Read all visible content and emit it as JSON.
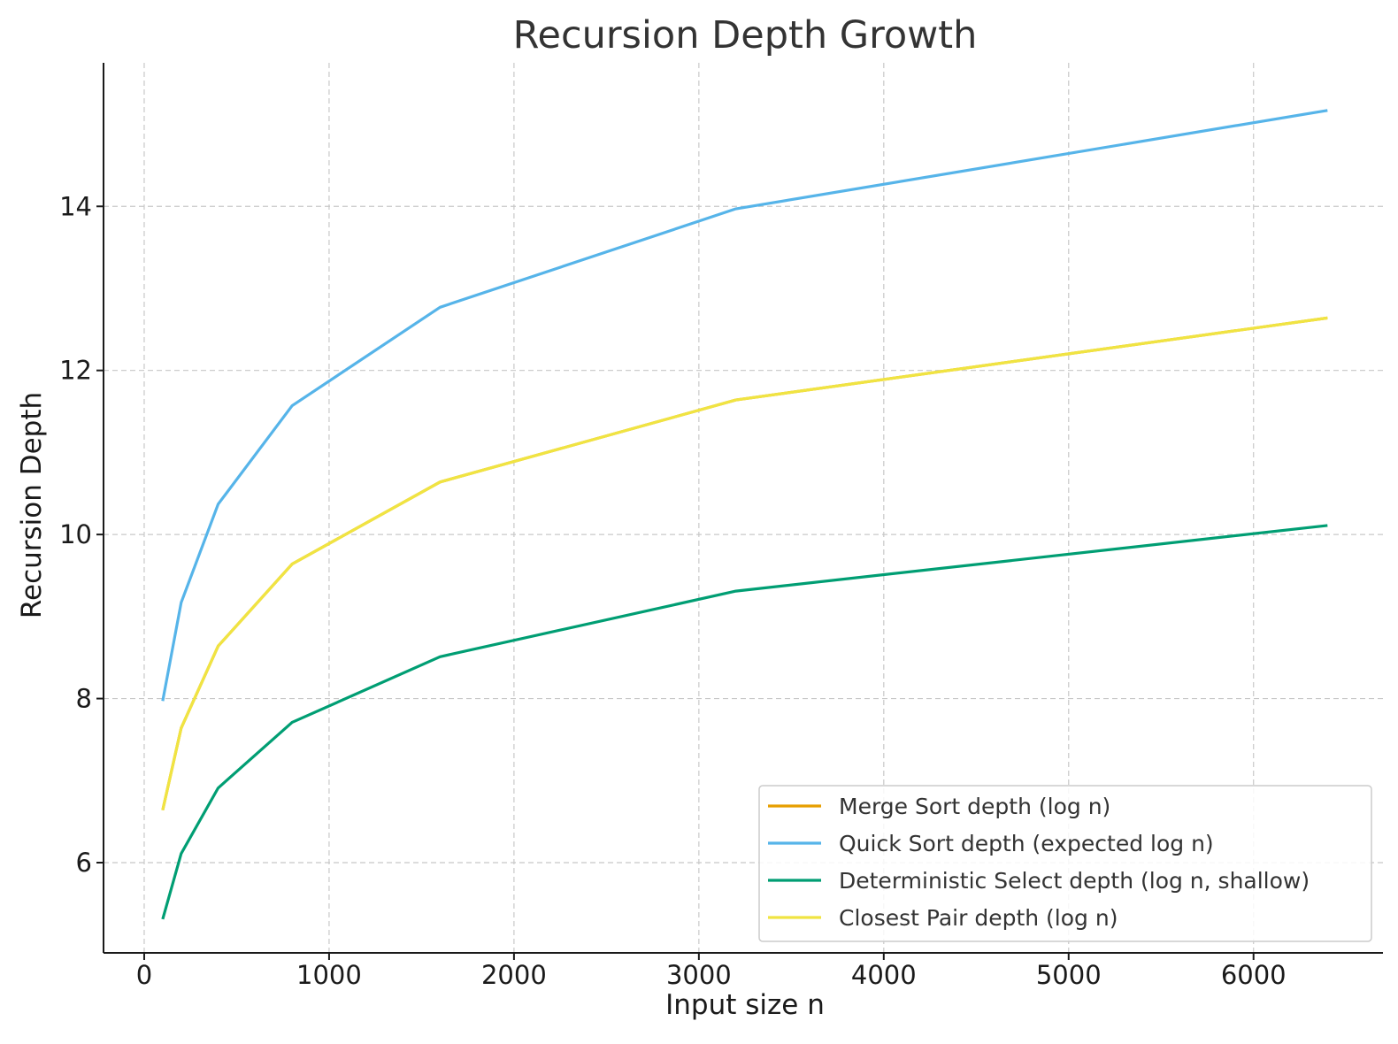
{
  "chart_data": {
    "type": "line",
    "title": "Recursion Depth Growth",
    "xlabel": "Input size n",
    "ylabel": "Recursion Depth",
    "xlim": [
      -220,
      6700
    ],
    "ylim": [
      4.9,
      15.75
    ],
    "xticks": [
      0,
      1000,
      2000,
      3000,
      4000,
      5000,
      6000
    ],
    "yticks": [
      6,
      8,
      10,
      12,
      14
    ],
    "grid": true,
    "legend_position": "lower-right",
    "x": [
      100,
      200,
      400,
      800,
      1600,
      3200,
      6400
    ],
    "series": [
      {
        "name": "Merge Sort depth (log n)",
        "color": "#E69F00",
        "values": [
          6.64,
          7.64,
          8.64,
          9.64,
          10.64,
          11.64,
          12.64
        ]
      },
      {
        "name": "Quick Sort depth (expected log n)",
        "color": "#56B4E9",
        "values": [
          7.97,
          9.17,
          10.37,
          11.57,
          12.77,
          13.97,
          15.17
        ]
      },
      {
        "name": "Deterministic Select depth (log n, shallow)",
        "color": "#009E73",
        "values": [
          5.31,
          6.11,
          6.91,
          7.71,
          8.51,
          9.31,
          10.11
        ]
      },
      {
        "name": "Closest Pair depth (log n)",
        "color": "#F0E442",
        "values": [
          6.64,
          7.64,
          8.64,
          9.64,
          10.64,
          11.64,
          12.64
        ]
      }
    ]
  }
}
